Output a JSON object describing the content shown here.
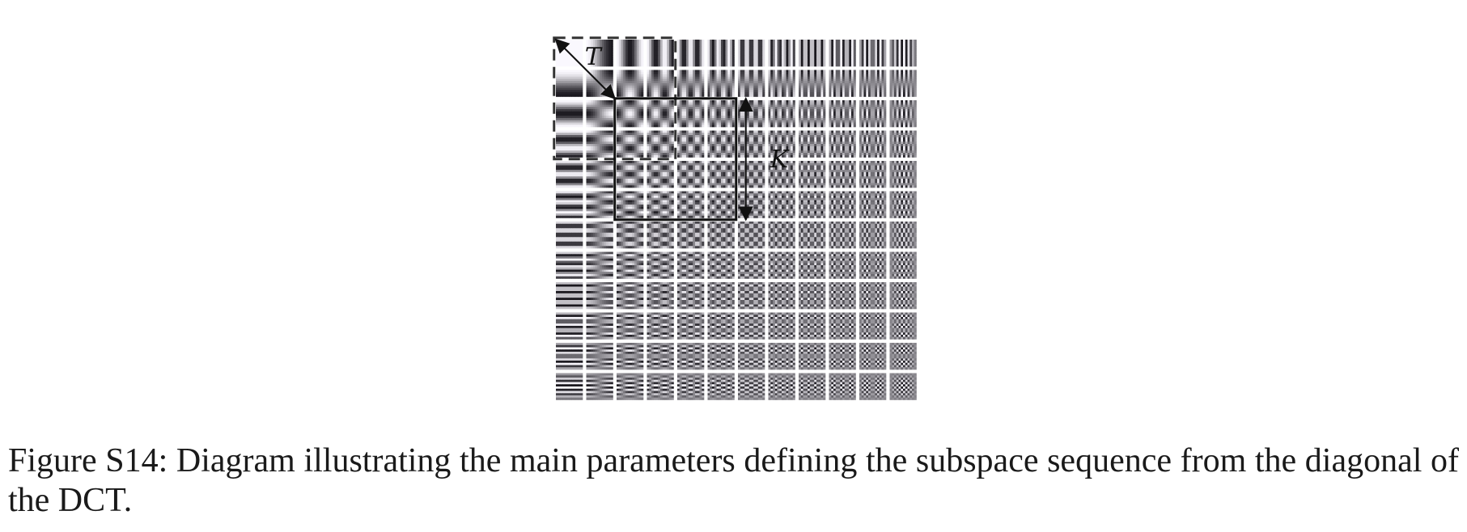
{
  "figure": {
    "grid": {
      "rows": 12,
      "cols": 12,
      "basis": "DCT"
    },
    "labels": {
      "T": "T",
      "K": "K"
    },
    "dashed_box": {
      "rows": 4,
      "cols": 4,
      "start_row": 0,
      "start_col": 0
    },
    "solid_box": {
      "rows": 4,
      "cols": 4,
      "start_row": 2,
      "start_col": 2
    }
  },
  "caption": {
    "text": "Figure S14: Diagram illustrating the main parameters defining the subspace sequence from the diagonal of the DCT."
  }
}
